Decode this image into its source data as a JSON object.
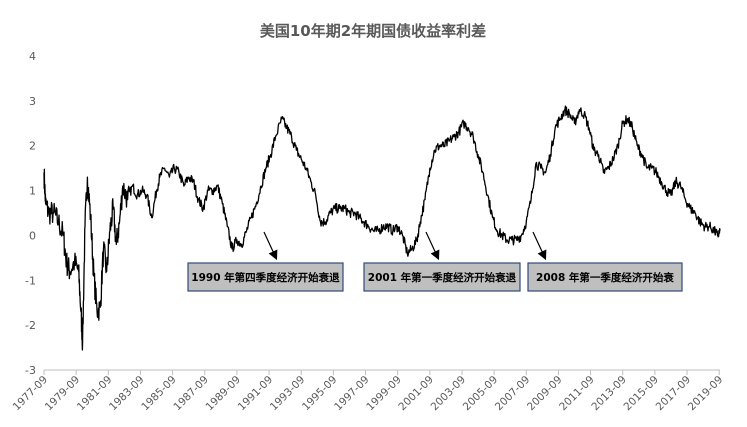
{
  "chart_data": {
    "type": "line",
    "title": "美国10年期2年期国债收益率利差",
    "xlabel": "",
    "ylabel": "",
    "ylim": [
      -3,
      4
    ],
    "yticks": [
      4,
      3,
      2,
      1,
      0,
      -1,
      -2,
      -3
    ],
    "grid": false,
    "legend": "none",
    "x_ticks": [
      "1977-09",
      "1979-09",
      "1981-09",
      "1983-09",
      "1985-09",
      "1987-09",
      "1989-09",
      "1991-09",
      "1993-09",
      "1995-09",
      "1997-09",
      "1999-09",
      "2001-09",
      "2003-09",
      "2005-09",
      "2007-09",
      "2009-09",
      "2011-09",
      "2013-09",
      "2015-09",
      "2017-09",
      "2019-09"
    ],
    "series": [
      {
        "name": "",
        "color": "#000000",
        "points": [
          [
            1977.7,
            1.4
          ],
          [
            1977.8,
            0.7
          ],
          [
            1978.0,
            0.5
          ],
          [
            1978.3,
            0.5
          ],
          [
            1978.6,
            0.3
          ],
          [
            1978.9,
            0.0
          ],
          [
            1979.1,
            -0.6
          ],
          [
            1979.3,
            -0.8
          ],
          [
            1979.6,
            -0.6
          ],
          [
            1979.85,
            -0.8
          ],
          [
            1980.0,
            -1.7
          ],
          [
            1980.1,
            -2.4
          ],
          [
            1980.25,
            0.2
          ],
          [
            1980.4,
            1.3
          ],
          [
            1980.6,
            0.4
          ],
          [
            1980.8,
            -0.9
          ],
          [
            1981.0,
            -1.7
          ],
          [
            1981.2,
            -1.6
          ],
          [
            1981.4,
            -0.3
          ],
          [
            1981.6,
            -0.8
          ],
          [
            1981.8,
            0.1
          ],
          [
            1982.0,
            0.6
          ],
          [
            1982.2,
            -0.2
          ],
          [
            1982.4,
            0.3
          ],
          [
            1982.6,
            1.1
          ],
          [
            1982.9,
            0.8
          ],
          [
            1983.2,
            1.1
          ],
          [
            1983.5,
            0.9
          ],
          [
            1983.8,
            1.0
          ],
          [
            1984.1,
            0.9
          ],
          [
            1984.4,
            0.4
          ],
          [
            1984.7,
            1.0
          ],
          [
            1984.9,
            1.3
          ],
          [
            1985.2,
            1.5
          ],
          [
            1985.5,
            1.3
          ],
          [
            1985.8,
            1.5
          ],
          [
            1986.1,
            1.4
          ],
          [
            1986.4,
            1.1
          ],
          [
            1986.7,
            1.3
          ],
          [
            1987.0,
            1.2
          ],
          [
            1987.3,
            0.8
          ],
          [
            1987.6,
            0.6
          ],
          [
            1987.9,
            1.0
          ],
          [
            1988.2,
            1.0
          ],
          [
            1988.5,
            1.1
          ],
          [
            1988.8,
            0.7
          ],
          [
            1989.1,
            0.2
          ],
          [
            1989.4,
            -0.3
          ],
          [
            1989.7,
            -0.1
          ],
          [
            1990.0,
            -0.2
          ],
          [
            1990.3,
            0.1
          ],
          [
            1990.6,
            0.4
          ],
          [
            1990.9,
            0.7
          ],
          [
            1991.2,
            1.1
          ],
          [
            1991.5,
            1.5
          ],
          [
            1991.8,
            1.8
          ],
          [
            1992.1,
            2.2
          ],
          [
            1992.5,
            2.6
          ],
          [
            1992.8,
            2.4
          ],
          [
            1993.1,
            2.2
          ],
          [
            1993.4,
            1.9
          ],
          [
            1993.7,
            1.7
          ],
          [
            1994.0,
            1.5
          ],
          [
            1994.3,
            1.2
          ],
          [
            1994.6,
            0.9
          ],
          [
            1994.9,
            0.3
          ],
          [
            1995.2,
            0.3
          ],
          [
            1995.5,
            0.5
          ],
          [
            1995.8,
            0.6
          ],
          [
            1996.1,
            0.6
          ],
          [
            1996.4,
            0.6
          ],
          [
            1996.7,
            0.5
          ],
          [
            1997.0,
            0.5
          ],
          [
            1997.3,
            0.4
          ],
          [
            1997.6,
            0.3
          ],
          [
            1997.9,
            0.2
          ],
          [
            1998.2,
            0.1
          ],
          [
            1998.5,
            0.1
          ],
          [
            1998.8,
            0.2
          ],
          [
            1999.1,
            0.2
          ],
          [
            1999.4,
            0.1
          ],
          [
            1999.7,
            0.2
          ],
          [
            2000.0,
            0.0
          ],
          [
            2000.3,
            -0.4
          ],
          [
            2000.6,
            -0.3
          ],
          [
            2000.9,
            -0.1
          ],
          [
            2001.1,
            0.3
          ],
          [
            2001.4,
            0.8
          ],
          [
            2001.7,
            1.5
          ],
          [
            2002.0,
            1.9
          ],
          [
            2002.3,
            2.0
          ],
          [
            2002.6,
            2.0
          ],
          [
            2002.9,
            2.1
          ],
          [
            2003.2,
            2.2
          ],
          [
            2003.5,
            2.3
          ],
          [
            2003.8,
            2.5
          ],
          [
            2004.1,
            2.4
          ],
          [
            2004.4,
            2.2
          ],
          [
            2004.7,
            1.8
          ],
          [
            2005.0,
            1.4
          ],
          [
            2005.3,
            0.9
          ],
          [
            2005.6,
            0.4
          ],
          [
            2005.9,
            0.1
          ],
          [
            2006.2,
            0.0
          ],
          [
            2006.5,
            -0.1
          ],
          [
            2006.8,
            -0.1
          ],
          [
            2007.1,
            -0.1
          ],
          [
            2007.4,
            0.0
          ],
          [
            2007.7,
            0.3
          ],
          [
            2008.0,
            0.8
          ],
          [
            2008.3,
            1.6
          ],
          [
            2008.6,
            1.5
          ],
          [
            2008.9,
            1.4
          ],
          [
            2009.2,
            1.8
          ],
          [
            2009.5,
            2.4
          ],
          [
            2009.8,
            2.6
          ],
          [
            2010.1,
            2.8
          ],
          [
            2010.4,
            2.7
          ],
          [
            2010.7,
            2.5
          ],
          [
            2011.0,
            2.8
          ],
          [
            2011.3,
            2.7
          ],
          [
            2011.6,
            2.4
          ],
          [
            2011.9,
            1.9
          ],
          [
            2012.2,
            1.8
          ],
          [
            2012.5,
            1.4
          ],
          [
            2012.8,
            1.5
          ],
          [
            2013.1,
            1.7
          ],
          [
            2013.4,
            2.0
          ],
          [
            2013.7,
            2.5
          ],
          [
            2014.0,
            2.6
          ],
          [
            2014.3,
            2.4
          ],
          [
            2014.6,
            2.0
          ],
          [
            2014.9,
            1.8
          ],
          [
            2015.2,
            1.5
          ],
          [
            2015.5,
            1.5
          ],
          [
            2015.8,
            1.4
          ],
          [
            2016.1,
            1.2
          ],
          [
            2016.4,
            1.0
          ],
          [
            2016.7,
            0.9
          ],
          [
            2017.0,
            1.2
          ],
          [
            2017.3,
            1.1
          ],
          [
            2017.6,
            0.8
          ],
          [
            2017.9,
            0.6
          ],
          [
            2018.2,
            0.5
          ],
          [
            2018.5,
            0.3
          ],
          [
            2018.8,
            0.2
          ],
          [
            2019.1,
            0.2
          ],
          [
            2019.4,
            0.1
          ],
          [
            2019.6,
            0.0
          ],
          [
            2019.75,
            0.1
          ]
        ]
      }
    ],
    "annotations": [
      {
        "text": "1990 年第四季度经济开始衰退",
        "arrow_target": [
          1990.15,
          -0.3
        ]
      },
      {
        "text": "2001 年第一季度经济开始衰退",
        "arrow_target": [
          2001.25,
          -0.3
        ]
      },
      {
        "text": "2008 年第一季度经济开始衰",
        "arrow_target": [
          2008.3,
          -0.3
        ]
      }
    ]
  }
}
